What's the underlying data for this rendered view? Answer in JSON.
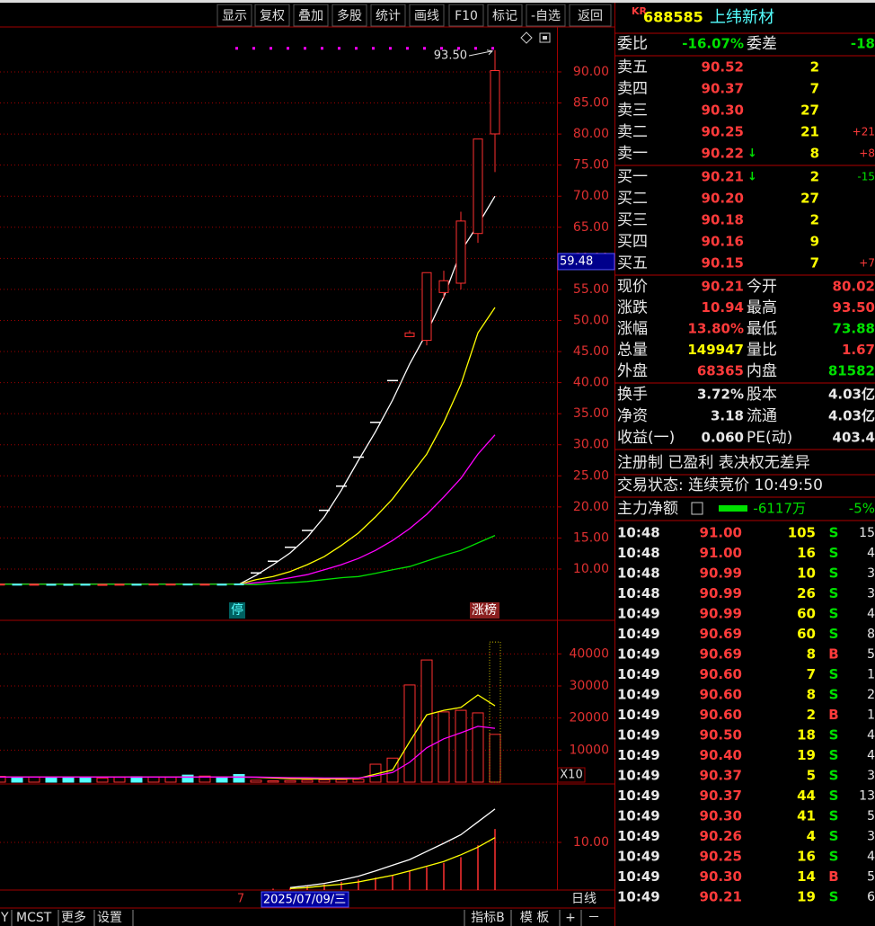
{
  "toolbar": [
    "显示",
    "复权",
    "叠加",
    "多股",
    "统计",
    "画线",
    "F10",
    "标记",
    "-自选",
    "返回"
  ],
  "chart_data": [
    {
      "type": "candlestick",
      "open": [
        7.55,
        7.56,
        7.52,
        7.54,
        7.53,
        7.55,
        7.5,
        7.52,
        7.55,
        7.56,
        7.55,
        7.58,
        7.54,
        7.56,
        7.6,
        9.38,
        11.26,
        13.51,
        16.21,
        19.45,
        23.34,
        28.01,
        33.61,
        40.33,
        47.4,
        46.8,
        54.5,
        56.0,
        64.0,
        80.02
      ],
      "high": [
        7.6,
        7.59,
        7.58,
        7.57,
        7.56,
        7.58,
        7.55,
        7.58,
        7.58,
        7.61,
        7.6,
        7.61,
        7.59,
        7.59,
        7.63,
        9.38,
        11.26,
        13.51,
        16.21,
        19.45,
        23.34,
        28.01,
        33.61,
        40.33,
        48.4,
        57.7,
        58.0,
        67.5,
        79.2,
        93.5
      ],
      "low": [
        7.52,
        7.5,
        7.49,
        7.47,
        7.48,
        7.5,
        7.47,
        7.49,
        7.5,
        7.53,
        7.52,
        7.52,
        7.51,
        7.51,
        7.52,
        9.38,
        11.26,
        13.51,
        16.21,
        19.45,
        23.34,
        28.01,
        33.61,
        40.33,
        47.3,
        46.0,
        53.5,
        55.0,
        62.5,
        73.88
      ],
      "close": [
        7.57,
        7.53,
        7.55,
        7.5,
        7.51,
        7.53,
        7.52,
        7.55,
        7.53,
        7.58,
        7.57,
        7.55,
        7.56,
        7.54,
        7.55,
        9.38,
        11.26,
        13.51,
        16.21,
        19.45,
        23.34,
        28.01,
        33.61,
        40.33,
        48.0,
        57.7,
        56.4,
        66.0,
        79.2,
        90.21
      ],
      "series": [
        {
          "color": "#ffffff",
          "values": [
            7.55,
            7.55,
            7.55,
            7.55,
            7.55,
            7.55,
            7.55,
            7.55,
            7.55,
            7.55,
            7.55,
            7.55,
            7.55,
            7.55,
            7.55,
            9.0,
            10.7,
            12.6,
            15.1,
            18.4,
            22.7,
            27.5,
            32.1,
            37.2,
            43.0,
            48.0,
            53.8,
            61.1,
            65.4,
            70.0
          ]
        },
        {
          "color": "#ffff00",
          "values": [
            7.55,
            7.55,
            7.55,
            7.55,
            7.55,
            7.55,
            7.55,
            7.55,
            7.55,
            7.55,
            7.55,
            7.55,
            7.55,
            7.55,
            7.55,
            8.3,
            8.8,
            9.6,
            10.7,
            12.0,
            13.8,
            15.8,
            18.4,
            21.3,
            24.9,
            28.5,
            33.6,
            39.7,
            48.0,
            52.1
          ]
        },
        {
          "color": "#ff00ff",
          "values": [
            7.55,
            7.55,
            7.55,
            7.55,
            7.55,
            7.55,
            7.55,
            7.55,
            7.55,
            7.55,
            7.55,
            7.55,
            7.55,
            7.55,
            7.55,
            7.8,
            8.1,
            8.6,
            9.1,
            9.9,
            10.7,
            11.7,
            13.0,
            14.6,
            16.5,
            18.8,
            21.6,
            24.6,
            28.5,
            31.6
          ]
        },
        {
          "color": "#00e000",
          "values": [
            7.55,
            7.55,
            7.55,
            7.55,
            7.55,
            7.55,
            7.55,
            7.55,
            7.55,
            7.55,
            7.55,
            7.55,
            7.55,
            7.55,
            7.55,
            7.5,
            7.7,
            7.8,
            8.0,
            8.3,
            8.6,
            8.8,
            9.3,
            9.9,
            10.4,
            11.3,
            12.2,
            13.0,
            14.2,
            15.4
          ]
        }
      ],
      "ylim": [
        1.75,
        97.23
      ],
      "yticks": [
        {
          "value": 90,
          "label": "90.00"
        },
        {
          "value": 85,
          "label": "85.00"
        },
        {
          "value": 80,
          "label": "80.00"
        },
        {
          "value": 75,
          "label": "75.00"
        },
        {
          "value": 70,
          "label": "70.00"
        },
        {
          "value": 65,
          "label": "65.00"
        },
        {
          "value": 60,
          "label": "60.00"
        },
        {
          "value": 55,
          "label": "55.00"
        },
        {
          "value": 50,
          "label": "50.00"
        },
        {
          "value": 45,
          "label": "45.00"
        },
        {
          "value": 40,
          "label": "40.00"
        },
        {
          "value": 35,
          "label": "35.00"
        },
        {
          "value": 30,
          "label": "30.00"
        },
        {
          "value": 25,
          "label": "25.00"
        },
        {
          "value": 20,
          "label": "20.00"
        },
        {
          "value": 15,
          "label": "15.00"
        },
        {
          "value": 10,
          "label": "10.00"
        }
      ],
      "high_annotation": {
        "value": 93.5,
        "label": "93.50"
      },
      "cursor_price": {
        "value": 59.48,
        "label": "59.48"
      },
      "markers": [
        "停",
        "涨榜"
      ]
    },
    {
      "type": "bar",
      "values": [
        1800,
        1500,
        1600,
        1400,
        1500,
        1400,
        1300,
        1500,
        1700,
        1600,
        1500,
        2200,
        1900,
        1600,
        2400,
        600,
        400,
        500,
        600,
        700,
        800,
        900,
        5600,
        7500,
        30300,
        38100,
        21900,
        22400,
        21600,
        14900
      ],
      "estimate": 43700,
      "series": [
        {
          "color": "#ffff00",
          "values": [
            1600,
            1600,
            1600,
            1600,
            1600,
            1600,
            1600,
            1600,
            1600,
            1600,
            1600,
            1600,
            1600,
            1600,
            1600,
            1500,
            1300,
            1100,
            1000,
            1000,
            1000,
            1200,
            2500,
            3800,
            12600,
            21000,
            22400,
            23300,
            27200,
            23800
          ]
        },
        {
          "color": "#ff00ff",
          "values": [
            1600,
            1600,
            1600,
            1600,
            1600,
            1600,
            1600,
            1600,
            1600,
            1600,
            1600,
            1600,
            1600,
            1600,
            1600,
            1600,
            1500,
            1400,
            1400,
            1300,
            1300,
            1300,
            2000,
            3000,
            6200,
            10700,
            13500,
            15400,
            17400,
            16800
          ]
        }
      ],
      "ylim": [
        0,
        50460
      ],
      "yticks": [
        40000,
        30000,
        20000,
        10000
      ],
      "scale_label": "X10"
    },
    {
      "type": "bar",
      "color": "#ff3030",
      "values": [
        null,
        null,
        null,
        null,
        null,
        null,
        null,
        null,
        null,
        null,
        null,
        null,
        null,
        null,
        null,
        null,
        0.3,
        0.5,
        0.9,
        1.2,
        1.7,
        2.2,
        2.6,
        3.1,
        4.0,
        4.8,
        5.7,
        6.9,
        9.4,
        12.8
      ],
      "series": [
        {
          "color": "#ffffff",
          "values": [
            null,
            null,
            null,
            null,
            null,
            null,
            null,
            null,
            null,
            null,
            null,
            null,
            null,
            null,
            null,
            null,
            null,
            0.5,
            0.9,
            1.4,
            2.1,
            2.9,
            4.0,
            5.2,
            6.4,
            8.1,
            9.8,
            11.6,
            14.3,
            17.0
          ]
        },
        {
          "color": "#ffff00",
          "values": [
            null,
            null,
            null,
            null,
            null,
            null,
            null,
            null,
            null,
            null,
            null,
            null,
            null,
            null,
            null,
            null,
            null,
            0.3,
            0.5,
            0.9,
            1.2,
            1.7,
            2.4,
            3.1,
            4.0,
            5.0,
            6.0,
            7.4,
            9.0,
            11.0
          ]
        }
      ],
      "ylim": [
        0,
        22.07
      ],
      "yticks": [
        {
          "value": 10,
          "label": "10.00"
        }
      ]
    }
  ],
  "date_bar": {
    "axis_label": "7",
    "cursor_date": "2025/07/09/三",
    "period": "日线"
  },
  "bottom_left": [
    "Y",
    "MCST",
    "更多",
    "设置"
  ],
  "bottom_right": [
    "指标B",
    "模 板",
    "+",
    "－"
  ],
  "quote": {
    "code_prefix": "KR",
    "code": "688585",
    "name": "上纬新材",
    "ratio": {
      "label": "委比",
      "value": "-16.07%",
      "diff_label": "委差",
      "diff": "-18"
    },
    "asks": [
      {
        "label": "卖五",
        "price": "90.52",
        "volume": "2"
      },
      {
        "label": "卖四",
        "price": "90.37",
        "volume": "7"
      },
      {
        "label": "卖三",
        "price": "90.30",
        "volume": "27"
      },
      {
        "label": "卖二",
        "price": "90.25",
        "volume": "21",
        "change": "+21"
      },
      {
        "label": "卖一",
        "price": "90.22",
        "arrow": "↓",
        "volume": "8",
        "change": "+8"
      }
    ],
    "bids": [
      {
        "label": "买一",
        "price": "90.21",
        "arrow": "↓",
        "volume": "2",
        "change": "-15"
      },
      {
        "label": "买二",
        "price": "90.20",
        "volume": "27"
      },
      {
        "label": "买三",
        "price": "90.18",
        "volume": "2"
      },
      {
        "label": "买四",
        "price": "90.16",
        "volume": "9"
      },
      {
        "label": "买五",
        "price": "90.15",
        "volume": "7",
        "change": "+7"
      }
    ],
    "stats": [
      [
        "现价",
        "90.21",
        "今开",
        "80.02"
      ],
      [
        "涨跌",
        "10.94",
        "最高",
        "93.50"
      ],
      [
        "涨幅",
        "13.80%",
        "最低",
        "73.88"
      ],
      [
        "总量",
        "149947",
        "量比",
        "1.67"
      ],
      [
        "外盘",
        "68365",
        "内盘",
        "81582"
      ]
    ],
    "stats2": [
      [
        "换手",
        "3.72%",
        "股本",
        "4.03亿"
      ],
      [
        "净资",
        "3.18",
        "流通",
        "4.03亿"
      ],
      [
        "收益(一)",
        "0.060",
        "PE(动)",
        "403.4"
      ]
    ],
    "notice": "注册制 已盈利 表决权无差异",
    "status": "交易状态: 连续竞价 10:49:50",
    "main_flow": {
      "label": "主力净额",
      "value": "-6117万",
      "pct": "-5%"
    },
    "ticks": [
      [
        "10:48",
        "91.00",
        "105",
        "S",
        "15"
      ],
      [
        "10:48",
        "91.00",
        "16",
        "S",
        "4"
      ],
      [
        "10:48",
        "90.99",
        "10",
        "S",
        "3"
      ],
      [
        "10:48",
        "90.99",
        "26",
        "S",
        "3"
      ],
      [
        "10:49",
        "90.99",
        "60",
        "S",
        "4"
      ],
      [
        "10:49",
        "90.69",
        "60",
        "S",
        "8"
      ],
      [
        "10:49",
        "90.69",
        "8",
        "B",
        "5"
      ],
      [
        "10:49",
        "90.60",
        "7",
        "S",
        "1"
      ],
      [
        "10:49",
        "90.60",
        "8",
        "S",
        "2"
      ],
      [
        "10:49",
        "90.60",
        "2",
        "B",
        "1"
      ],
      [
        "10:49",
        "90.50",
        "18",
        "S",
        "4"
      ],
      [
        "10:49",
        "90.40",
        "19",
        "S",
        "4"
      ],
      [
        "10:49",
        "90.37",
        "5",
        "S",
        "3"
      ],
      [
        "10:49",
        "90.37",
        "44",
        "S",
        "13"
      ],
      [
        "10:49",
        "90.30",
        "41",
        "S",
        "5"
      ],
      [
        "10:49",
        "90.26",
        "4",
        "S",
        "3"
      ],
      [
        "10:49",
        "90.25",
        "16",
        "S",
        "4"
      ],
      [
        "10:49",
        "90.30",
        "14",
        "B",
        "5"
      ],
      [
        "10:49",
        "90.21",
        "19",
        "S",
        "6"
      ]
    ]
  }
}
